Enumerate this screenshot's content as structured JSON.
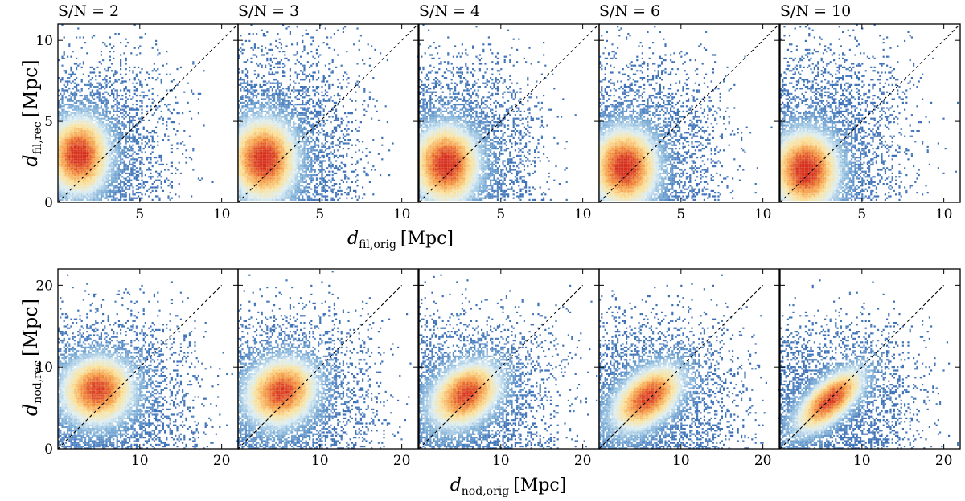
{
  "chart_data": [
    {
      "type": "heatmap",
      "row": "filament",
      "xlabel": {
        "symbol": "d",
        "sub": "fil,orig",
        "unit": "[Mpc]"
      },
      "ylabel": {
        "symbol": "d",
        "sub": "fil,rec",
        "unit": "[Mpc]"
      },
      "xlim": [
        0,
        11
      ],
      "ylim": [
        0,
        11
      ],
      "xticks": [
        5,
        10
      ],
      "yticks": [
        0,
        5,
        10
      ],
      "diagonal": [
        [
          0,
          0
        ],
        [
          11,
          11
        ]
      ],
      "colormap": [
        "#3b6fb6",
        "#7fb0d8",
        "#dceef5",
        "#fbe29a",
        "#f59a45",
        "#d6301d"
      ],
      "panels": [
        {
          "title": "S/N = 2",
          "peak": [
            1.3,
            3.0
          ],
          "spread": [
            1.4,
            1.8
          ],
          "extent": [
            6.8,
            8.8
          ]
        },
        {
          "title": "S/N = 3",
          "peak": [
            1.6,
            2.7
          ],
          "spread": [
            1.5,
            1.9
          ],
          "extent": [
            7.2,
            9.2
          ]
        },
        {
          "title": "S/N = 4",
          "peak": [
            1.7,
            2.4
          ],
          "spread": [
            1.5,
            1.8
          ],
          "extent": [
            7.2,
            8.6
          ]
        },
        {
          "title": "S/N = 6",
          "peak": [
            1.6,
            2.2
          ],
          "spread": [
            1.5,
            1.8
          ],
          "extent": [
            7.2,
            8.6
          ]
        },
        {
          "title": "S/N = 10",
          "peak": [
            1.6,
            2.0
          ],
          "spread": [
            1.5,
            1.8
          ],
          "extent": [
            7.4,
            9.1
          ]
        }
      ]
    },
    {
      "type": "heatmap",
      "row": "node",
      "xlabel": {
        "symbol": "d",
        "sub": "nod,orig",
        "unit": "[Mpc]"
      },
      "ylabel": {
        "symbol": "d",
        "sub": "nod,rec",
        "unit": "[Mpc]"
      },
      "xlim": [
        0,
        22
      ],
      "ylim": [
        0,
        22
      ],
      "xticks": [
        10,
        20
      ],
      "yticks": [
        0,
        10,
        20
      ],
      "diagonal": [
        [
          0,
          0
        ],
        [
          20,
          20
        ]
      ],
      "colormap": [
        "#3b6fb6",
        "#7fb0d8",
        "#dceef5",
        "#fbe29a",
        "#f59a45",
        "#d6301d"
      ],
      "panels": [
        {
          "peak": [
            5.0,
            7.5
          ],
          "spread": [
            3.3,
            3.2
          ],
          "extent": [
            16.5,
            16.0
          ],
          "corr": 0.05
        },
        {
          "peak": [
            5.5,
            7.3
          ],
          "spread": [
            3.3,
            3.2
          ],
          "extent": [
            16.5,
            16.0
          ],
          "corr": 0.15
        },
        {
          "peak": [
            6.0,
            7.0
          ],
          "spread": [
            3.3,
            3.1
          ],
          "extent": [
            16.5,
            15.5
          ],
          "corr": 0.35
        },
        {
          "peak": [
            6.3,
            6.6
          ],
          "spread": [
            3.3,
            3.1
          ],
          "extent": [
            16.5,
            15.5
          ],
          "corr": 0.5
        },
        {
          "peak": [
            6.5,
            6.3
          ],
          "spread": [
            3.2,
            3.0
          ],
          "extent": [
            16.5,
            15.0
          ],
          "corr": 0.7
        }
      ]
    }
  ]
}
